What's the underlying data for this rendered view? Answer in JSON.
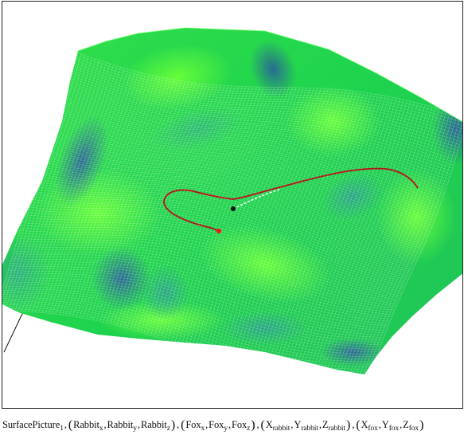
{
  "expression": {
    "function": "SurfacePicture",
    "function_subscript": "1",
    "separator": ",",
    "groups": [
      {
        "items": [
          {
            "base": "Rabbit",
            "sub": "x"
          },
          {
            "base": "Rabbit",
            "sub": "y"
          },
          {
            "base": "Rabbit",
            "sub": "z"
          }
        ]
      },
      {
        "items": [
          {
            "base": "Fox",
            "sub": "x"
          },
          {
            "base": "Fox",
            "sub": "y"
          },
          {
            "base": "Fox",
            "sub": "z"
          }
        ]
      },
      {
        "items": [
          {
            "base": "X",
            "sub": "rabbit"
          },
          {
            "base": "Y",
            "sub": "rabbit"
          },
          {
            "base": "Z",
            "sub": "rabbit"
          }
        ]
      },
      {
        "items": [
          {
            "base": "X",
            "sub": "fox"
          },
          {
            "base": "Y",
            "sub": "fox"
          },
          {
            "base": "Z",
            "sub": "fox"
          }
        ]
      }
    ]
  },
  "plot": {
    "surface_colors": {
      "light": "#3cff3c",
      "mid": "#1fd34e",
      "dark": "#2f6fa0",
      "deep": "#3a5b8a"
    },
    "mesh_color": "#ffffff",
    "rabbit_path_color": "#d92020",
    "fox_path_color": "#222222",
    "rabbit_marker_color": "#ff1010",
    "fox_marker_color": "#111111",
    "axis_color": "#111111"
  }
}
